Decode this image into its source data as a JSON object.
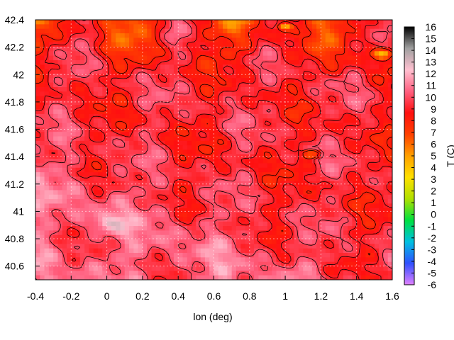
{
  "chart_data": {
    "type": "heatmap",
    "title": "",
    "xlabel": "lon (deg)",
    "ylabel": "",
    "colorbar_label": "T (C)",
    "xlim": [
      -0.4,
      1.6
    ],
    "ylim": [
      40.5,
      42.4
    ],
    "x_ticks": [
      "-0.4",
      "-0.2",
      "0",
      "0.2",
      "0.4",
      "0.6",
      "0.8",
      "1",
      "1.2",
      "1.4",
      "1.6"
    ],
    "y_ticks": [
      "40.6",
      "40.8",
      "41",
      "41.2",
      "41.4",
      "41.6",
      "41.8",
      "42",
      "42.2",
      "42.4"
    ],
    "colorbar_ticks": [
      "16",
      "15",
      "14",
      "13",
      "12",
      "11",
      "10",
      "9",
      "8",
      "7",
      "6",
      "5",
      "4",
      "3",
      "2",
      "1",
      "0",
      "-1",
      "-2",
      "-3",
      "-4",
      "-5",
      "-6"
    ],
    "color_range": [
      -6,
      16
    ],
    "grid": true,
    "contours": true,
    "colormap": [
      "#e080ff",
      "#3050ff",
      "#00c0e0",
      "#00e040",
      "#b0e000",
      "#ffe000",
      "#ffa000",
      "#ff4000",
      "#ff1010",
      "#ff6080",
      "#ffc0d0",
      "#a0a0a0",
      "#000000"
    ],
    "values_description_note": ""
  }
}
